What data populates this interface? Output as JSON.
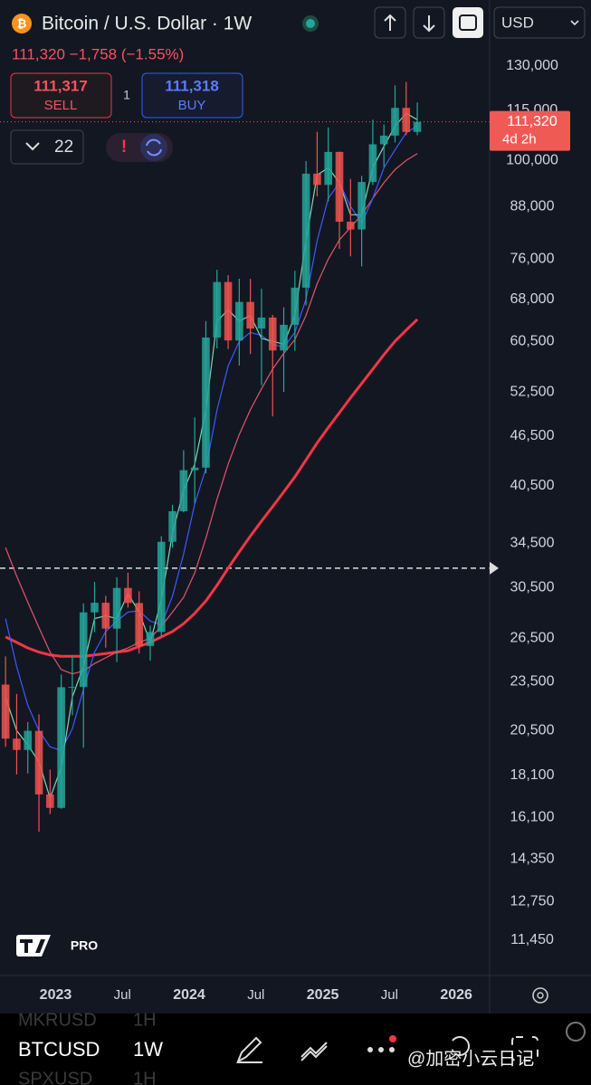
{
  "header": {
    "title": "Bitcoin / U.S. Dollar · 1W",
    "quote": "111,320 −1,758 (−1.55%)",
    "currency": "USD"
  },
  "trade": {
    "sell_price": "111,317",
    "sell_label": "SELL",
    "spread": "1",
    "buy_price": "111,318",
    "buy_label": "BUY"
  },
  "indicators": {
    "count": "22"
  },
  "logo": "PRO",
  "bottom_bar": {
    "symbols": [
      {
        "symbol": "MKRUSD",
        "interval": "1H"
      },
      {
        "symbol": "BTCUSD",
        "interval": "1W"
      },
      {
        "symbol": "SPXUSD",
        "interval": "1H"
      }
    ],
    "watermark": "@加密小云日记"
  },
  "chart_data": {
    "type": "candlestick",
    "log_scale": true,
    "x": [
      "2022-08",
      "2022-09",
      "2022-10",
      "2022-11",
      "2022-12",
      "2023-01",
      "2023-02",
      "2023-03",
      "2023-04",
      "2023-05",
      "2023-06",
      "2023-07",
      "2023-08",
      "2023-09",
      "2023-10",
      "2023-11",
      "2023-12",
      "2024-01",
      "2024-02",
      "2024-03",
      "2024-04",
      "2024-05",
      "2024-06",
      "2024-07",
      "2024-08",
      "2024-09",
      "2024-10",
      "2024-11",
      "2024-12",
      "2025-01",
      "2025-02",
      "2025-03",
      "2025-04",
      "2025-05",
      "2025-06",
      "2025-07",
      "2025-08",
      "2025-09"
    ],
    "open": [
      23300,
      20050,
      19430,
      20490,
      17170,
      16540,
      23130,
      23150,
      28480,
      29250,
      27220,
      30480,
      29230,
      25940,
      26970,
      34650,
      37720,
      42280,
      42580,
      61130,
      71330,
      60640,
      67490,
      62680,
      64630,
      58970,
      63330,
      70220,
      96400,
      93430,
      102400,
      84350,
      82550,
      94200,
      104600,
      107150,
      115750,
      108250
    ],
    "high": [
      25200,
      22700,
      21000,
      21450,
      18400,
      23960,
      25250,
      29200,
      31000,
      29820,
      31400,
      31800,
      30200,
      27450,
      35200,
      38400,
      44700,
      48970,
      64000,
      73800,
      72700,
      71980,
      71950,
      70000,
      65100,
      66500,
      73600,
      99800,
      108300,
      109600,
      102500,
      95000,
      95800,
      112000,
      110500,
      123200,
      124400,
      117500
    ],
    "low": [
      19600,
      18150,
      18200,
      15480,
      16260,
      16500,
      21400,
      19550,
      26950,
      25820,
      24800,
      28860,
      25400,
      24900,
      26550,
      34100,
      37600,
      38550,
      41900,
      59300,
      59200,
      56550,
      58400,
      53550,
      49100,
      52550,
      58900,
      66850,
      90500,
      89250,
      78200,
      76600,
      74500,
      93400,
      98200,
      105100,
      107300,
      107300
    ],
    "close": [
      20050,
      19430,
      20490,
      17170,
      16540,
      23130,
      23150,
      28480,
      29250,
      27220,
      30480,
      29230,
      25940,
      26970,
      34650,
      37720,
      42280,
      42580,
      61130,
      71330,
      60640,
      67490,
      62680,
      64630,
      58970,
      63330,
      70220,
      96400,
      93430,
      102400,
      84350,
      82550,
      94200,
      104600,
      107150,
      115750,
      108250,
      111320
    ],
    "up_color": "#26a69a",
    "down_color": "#ef5350",
    "moving_averages": [
      {
        "color": "#f23645",
        "width": 3,
        "values": [
          26600,
          26200,
          25800,
          25500,
          25300,
          25200,
          25200,
          25200,
          25300,
          25400,
          25500,
          25600,
          25900,
          26200,
          26600,
          27000,
          27600,
          28400,
          29400,
          30700,
          32200,
          33700,
          35200,
          36700,
          38200,
          39800,
          41500,
          43500,
          45600,
          47600,
          49600,
          51700,
          53800,
          56000,
          58300,
          60500,
          62400,
          64300
        ]
      },
      {
        "color": "#e2556a",
        "width": 1.2,
        "values": [
          34100,
          31500,
          29300,
          27300,
          25500,
          24300,
          24000,
          24200,
          24700,
          25100,
          25500,
          25800,
          26200,
          26500,
          27400,
          28500,
          29700,
          31800,
          35000,
          39000,
          43000,
          46700,
          50000,
          53000,
          56000,
          58500,
          60800,
          65000,
          71000,
          76000,
          80200,
          83000,
          86000,
          90000,
          94000,
          97500,
          100000,
          101900
        ]
      },
      {
        "color": "#3d5afe",
        "width": 1.2,
        "values": [
          28000,
          24500,
          22000,
          20500,
          19600,
          19400,
          20600,
          23000,
          25500,
          27000,
          27800,
          28500,
          28600,
          27800,
          27500,
          29800,
          33500,
          38500,
          42500,
          50000,
          56500,
          60500,
          62000,
          61500,
          60000,
          59500,
          62000,
          68000,
          80000,
          90000,
          94000,
          88000,
          84000,
          90000,
          98000,
          103000,
          108000,
          110000
        ]
      },
      {
        "color": "#7fd6b0",
        "width": 1.2,
        "values": [
          22500,
          20500,
          19700,
          18800,
          17000,
          18500,
          22500,
          24500,
          28000,
          28200,
          28000,
          30000,
          28500,
          26200,
          29500,
          35500,
          40000,
          43000,
          50000,
          64000,
          66000,
          64000,
          65000,
          61000,
          60500,
          60000,
          65000,
          80000,
          96000,
          98000,
          94000,
          86000,
          86000,
          98000,
          104000,
          110000,
          114000,
          112000
        ]
      }
    ],
    "last_price": {
      "value": 111320,
      "label": "111,320",
      "countdown": "4d 2h",
      "color": "#f05a55"
    },
    "hline": 32200,
    "ylim": [
      10380,
      156200
    ],
    "yticks": [
      {
        "value": 130000,
        "label": "130,000"
      },
      {
        "value": 115000,
        "label": "115,000"
      },
      {
        "value": 100000,
        "label": "100,000"
      },
      {
        "value": 88000,
        "label": "88,000"
      },
      {
        "value": 76000,
        "label": "76,000"
      },
      {
        "value": 68000,
        "label": "68,000"
      },
      {
        "value": 60500,
        "label": "60,500"
      },
      {
        "value": 52500,
        "label": "52,500"
      },
      {
        "value": 46500,
        "label": "46,500"
      },
      {
        "value": 40500,
        "label": "40,500"
      },
      {
        "value": 34500,
        "label": "34,500"
      },
      {
        "value": 30500,
        "label": "30,500"
      },
      {
        "value": 26500,
        "label": "26,500"
      },
      {
        "value": 23500,
        "label": "23,500"
      },
      {
        "value": 20500,
        "label": "20,500"
      },
      {
        "value": 18100,
        "label": "18,100"
      },
      {
        "value": 16100,
        "label": "16,100"
      },
      {
        "value": 14350,
        "label": "14,350"
      },
      {
        "value": 12750,
        "label": "12,750"
      },
      {
        "value": 11450,
        "label": "11,450"
      }
    ],
    "xlim": [
      "2022-08",
      "2026-04"
    ],
    "xticks": [
      {
        "value": "2023-01",
        "label": "2023"
      },
      {
        "value": "2023-07",
        "label": "Jul"
      },
      {
        "value": "2024-01",
        "label": "2024"
      },
      {
        "value": "2024-07",
        "label": "Jul"
      },
      {
        "value": "2025-01",
        "label": "2025"
      },
      {
        "value": "2025-07",
        "label": "Jul"
      },
      {
        "value": "2026-01",
        "label": "2026"
      }
    ]
  }
}
